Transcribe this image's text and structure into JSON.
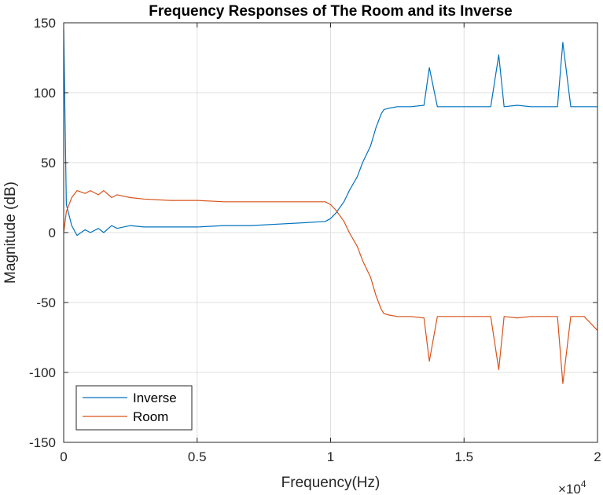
{
  "chart_data": {
    "type": "line",
    "title": "Frequency Responses of The Room and its Inverse",
    "xlabel": "Frequency(Hz)",
    "ylabel": "Magnitude (dB)",
    "x_exponent_base": "×10",
    "x_exponent_power": "4",
    "xlim": [
      0,
      20000
    ],
    "ylim": [
      -150,
      150
    ],
    "xticks": [
      0,
      5000,
      10000,
      15000,
      20000
    ],
    "xtick_labels": [
      "0",
      "0.5",
      "1",
      "1.5",
      "2"
    ],
    "yticks": [
      -150,
      -100,
      -50,
      0,
      50,
      100,
      150
    ],
    "ytick_labels": [
      "-150",
      "-100",
      "-50",
      "0",
      "50",
      "100",
      "150"
    ],
    "grid": true,
    "legend_position": "bottom-left",
    "series": [
      {
        "name": "Inverse",
        "color": "#0072BD",
        "x": [
          0,
          100,
          300,
          500,
          800,
          1000,
          1300,
          1500,
          1800,
          2000,
          2500,
          3000,
          4000,
          5000,
          6000,
          7000,
          8000,
          9000,
          9800,
          10000,
          10200,
          10500,
          10700,
          11000,
          11200,
          11500,
          11700,
          11900,
          12000,
          12200,
          12500,
          13000,
          13500,
          13700,
          14000,
          14500,
          15000,
          15500,
          16000,
          16300,
          16500,
          17000,
          17500,
          18000,
          18500,
          18700,
          19000,
          19500,
          20000
        ],
        "y": [
          145,
          20,
          5,
          -2,
          2,
          0,
          3,
          0,
          5,
          3,
          5,
          4,
          4,
          4,
          5,
          5,
          6,
          7,
          8,
          10,
          14,
          22,
          30,
          40,
          50,
          62,
          75,
          85,
          88,
          89,
          90,
          90,
          91,
          118,
          90,
          90,
          90,
          90,
          90,
          127,
          90,
          91,
          90,
          90,
          90,
          136,
          90,
          90,
          90
        ]
      },
      {
        "name": "Room",
        "color": "#D95319",
        "x": [
          0,
          100,
          300,
          500,
          800,
          1000,
          1300,
          1500,
          1800,
          2000,
          2500,
          3000,
          4000,
          5000,
          6000,
          7000,
          8000,
          9000,
          9800,
          10000,
          10200,
          10500,
          10700,
          11000,
          11200,
          11500,
          11700,
          11900,
          12000,
          12200,
          12500,
          13000,
          13500,
          13700,
          14000,
          14500,
          15000,
          15500,
          16000,
          16300,
          16500,
          17000,
          17500,
          18000,
          18500,
          18700,
          19000,
          19500,
          20000
        ],
        "y": [
          0,
          15,
          25,
          30,
          28,
          30,
          27,
          30,
          25,
          27,
          25,
          24,
          23,
          23,
          22,
          22,
          22,
          22,
          22,
          20,
          16,
          8,
          0,
          -10,
          -20,
          -32,
          -45,
          -55,
          -58,
          -59,
          -60,
          -60,
          -61,
          -92,
          -60,
          -60,
          -60,
          -60,
          -60,
          -98,
          -60,
          -61,
          -60,
          -60,
          -60,
          -108,
          -60,
          -60,
          -70
        ]
      }
    ]
  }
}
